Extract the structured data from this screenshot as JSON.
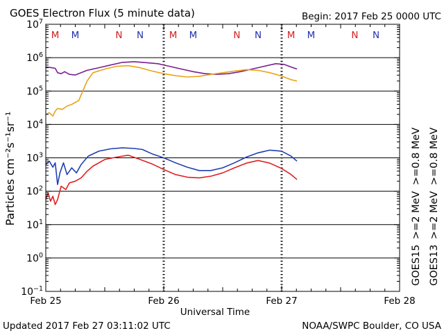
{
  "header": {
    "title": "GOES Electron Flux (5 minute data)",
    "begin": "Begin: 2017 Feb 25 0000 UTC"
  },
  "footer": {
    "updated": "Updated 2017 Feb 27 03:11:02 UTC",
    "source": "NOAA/SWPC Boulder, CO USA"
  },
  "colors": {
    "goes15_2mev": "#1f3fb0",
    "goes13_2mev": "#e02020",
    "goes15_08mev": "#7a1f8f",
    "goes13_08mev": "#e8a317",
    "marker_m": "#d42020",
    "marker_n": "#2030b0"
  },
  "chart_data": {
    "type": "line",
    "title": "GOES Electron Flux (5 minute data)",
    "xlabel": "Universal Time",
    "ylabel": "Particles cm⁻²s⁻¹sr⁻¹",
    "yscale": "log",
    "ylim_exp": [
      -1,
      7
    ],
    "y_tick_exponents": [
      -1,
      0,
      1,
      2,
      3,
      4,
      5,
      6,
      7
    ],
    "x_range_days": [
      0,
      3
    ],
    "x_tick_labels": [
      {
        "day": 0,
        "label": "Feb 25"
      },
      {
        "day": 1,
        "label": "Feb 26"
      },
      {
        "day": 2,
        "label": "Feb 27"
      },
      {
        "day": 3,
        "label": "Feb 28"
      }
    ],
    "alert_threshold_exp": 3,
    "local_time_markers": [
      {
        "day": 0.08,
        "label": "M",
        "color": "#d42020"
      },
      {
        "day": 0.25,
        "label": "M",
        "color": "#2030b0"
      },
      {
        "day": 0.62,
        "label": "N",
        "color": "#d42020"
      },
      {
        "day": 0.8,
        "label": "N",
        "color": "#2030b0"
      },
      {
        "day": 1.08,
        "label": "M",
        "color": "#d42020"
      },
      {
        "day": 1.25,
        "label": "M",
        "color": "#2030b0"
      },
      {
        "day": 1.62,
        "label": "N",
        "color": "#d42020"
      },
      {
        "day": 1.8,
        "label": "N",
        "color": "#2030b0"
      },
      {
        "day": 2.08,
        "label": "M",
        "color": "#d42020"
      },
      {
        "day": 2.25,
        "label": "M",
        "color": "#2030b0"
      },
      {
        "day": 2.62,
        "label": "N",
        "color": "#d42020"
      },
      {
        "day": 2.8,
        "label": "N",
        "color": "#2030b0"
      }
    ],
    "legend": {
      "energy_08": ">=0.8 MeV",
      "energy_2": ">=2 MeV",
      "sat_15": "GOES15",
      "sat_13": "GOES13"
    },
    "series": [
      {
        "name": "GOES15 >=0.8 MeV",
        "color": "#7a1f8f",
        "points": [
          [
            0,
            5.72
          ],
          [
            0.05,
            5.7
          ],
          [
            0.08,
            5.68
          ],
          [
            0.1,
            5.55
          ],
          [
            0.13,
            5.52
          ],
          [
            0.16,
            5.58
          ],
          [
            0.2,
            5.5
          ],
          [
            0.25,
            5.48
          ],
          [
            0.3,
            5.55
          ],
          [
            0.35,
            5.62
          ],
          [
            0.45,
            5.7
          ],
          [
            0.55,
            5.78
          ],
          [
            0.65,
            5.86
          ],
          [
            0.75,
            5.88
          ],
          [
            0.85,
            5.85
          ],
          [
            0.95,
            5.82
          ],
          [
            1.05,
            5.74
          ],
          [
            1.15,
            5.66
          ],
          [
            1.25,
            5.58
          ],
          [
            1.35,
            5.52
          ],
          [
            1.45,
            5.5
          ],
          [
            1.55,
            5.52
          ],
          [
            1.65,
            5.58
          ],
          [
            1.75,
            5.66
          ],
          [
            1.85,
            5.74
          ],
          [
            1.95,
            5.82
          ],
          [
            2.02,
            5.8
          ],
          [
            2.08,
            5.72
          ],
          [
            2.13,
            5.66
          ]
        ]
      },
      {
        "name": "GOES13 >=0.8 MeV",
        "color": "#e8a317",
        "points": [
          [
            0,
            4.3
          ],
          [
            0.03,
            4.35
          ],
          [
            0.06,
            4.25
          ],
          [
            0.08,
            4.4
          ],
          [
            0.1,
            4.48
          ],
          [
            0.14,
            4.45
          ],
          [
            0.18,
            4.55
          ],
          [
            0.22,
            4.6
          ],
          [
            0.28,
            4.72
          ],
          [
            0.35,
            5.3
          ],
          [
            0.4,
            5.55
          ],
          [
            0.5,
            5.66
          ],
          [
            0.6,
            5.74
          ],
          [
            0.7,
            5.76
          ],
          [
            0.8,
            5.7
          ],
          [
            0.9,
            5.6
          ],
          [
            1.0,
            5.52
          ],
          [
            1.1,
            5.46
          ],
          [
            1.2,
            5.42
          ],
          [
            1.3,
            5.44
          ],
          [
            1.4,
            5.5
          ],
          [
            1.5,
            5.55
          ],
          [
            1.6,
            5.6
          ],
          [
            1.7,
            5.64
          ],
          [
            1.8,
            5.62
          ],
          [
            1.9,
            5.55
          ],
          [
            2.0,
            5.45
          ],
          [
            2.08,
            5.34
          ],
          [
            2.13,
            5.3
          ]
        ]
      },
      {
        "name": "GOES15 >=2 MeV",
        "color": "#1f3fb0",
        "points": [
          [
            0,
            2.8
          ],
          [
            0.03,
            2.9
          ],
          [
            0.06,
            2.72
          ],
          [
            0.08,
            2.85
          ],
          [
            0.1,
            2.2
          ],
          [
            0.12,
            2.55
          ],
          [
            0.15,
            2.85
          ],
          [
            0.18,
            2.5
          ],
          [
            0.2,
            2.6
          ],
          [
            0.22,
            2.7
          ],
          [
            0.26,
            2.55
          ],
          [
            0.3,
            2.8
          ],
          [
            0.36,
            3.05
          ],
          [
            0.45,
            3.2
          ],
          [
            0.55,
            3.27
          ],
          [
            0.65,
            3.3
          ],
          [
            0.75,
            3.28
          ],
          [
            0.82,
            3.25
          ],
          [
            0.9,
            3.12
          ],
          [
            1.0,
            3.0
          ],
          [
            1.1,
            2.85
          ],
          [
            1.2,
            2.72
          ],
          [
            1.3,
            2.62
          ],
          [
            1.4,
            2.62
          ],
          [
            1.5,
            2.7
          ],
          [
            1.6,
            2.85
          ],
          [
            1.7,
            3.02
          ],
          [
            1.8,
            3.15
          ],
          [
            1.9,
            3.23
          ],
          [
            2.0,
            3.2
          ],
          [
            2.08,
            3.05
          ],
          [
            2.13,
            2.9
          ]
        ]
      },
      {
        "name": "GOES13 >=2 MeV",
        "color": "#e02020",
        "points": [
          [
            0,
            1.75
          ],
          [
            0.02,
            1.95
          ],
          [
            0.04,
            1.7
          ],
          [
            0.06,
            1.85
          ],
          [
            0.08,
            1.6
          ],
          [
            0.1,
            1.75
          ],
          [
            0.13,
            2.15
          ],
          [
            0.17,
            2.05
          ],
          [
            0.2,
            2.25
          ],
          [
            0.25,
            2.3
          ],
          [
            0.3,
            2.4
          ],
          [
            0.35,
            2.6
          ],
          [
            0.4,
            2.75
          ],
          [
            0.5,
            2.95
          ],
          [
            0.6,
            3.02
          ],
          [
            0.7,
            3.08
          ],
          [
            0.8,
            2.95
          ],
          [
            0.9,
            2.82
          ],
          [
            1.0,
            2.65
          ],
          [
            1.1,
            2.5
          ],
          [
            1.2,
            2.42
          ],
          [
            1.3,
            2.4
          ],
          [
            1.4,
            2.45
          ],
          [
            1.5,
            2.55
          ],
          [
            1.6,
            2.7
          ],
          [
            1.7,
            2.84
          ],
          [
            1.8,
            2.92
          ],
          [
            1.9,
            2.84
          ],
          [
            2.0,
            2.68
          ],
          [
            2.08,
            2.5
          ],
          [
            2.13,
            2.35
          ]
        ]
      }
    ]
  }
}
